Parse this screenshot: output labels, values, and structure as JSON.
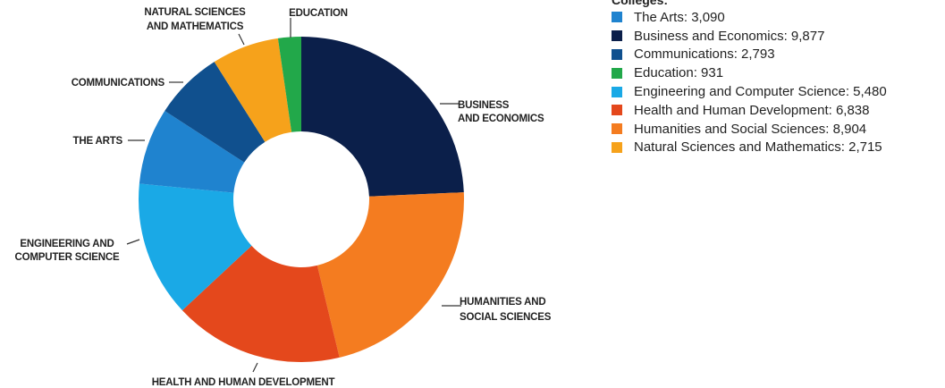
{
  "chart_data": {
    "type": "pie",
    "legend_title": "Colleges:",
    "legend_placement": "top-right",
    "slices": [
      {
        "key": "business",
        "legend": "Business and Economics: 9,877",
        "label": [
          "BUSINESS",
          "AND ECONOMICS"
        ],
        "value": 9877,
        "color": "#0b1f4a"
      },
      {
        "key": "humanities",
        "legend": "Humanities and Social Sciences: 8,904",
        "label": [
          "HUMANITIES AND",
          "SOCIAL SCIENCES"
        ],
        "value": 8904,
        "color": "#f47c20"
      },
      {
        "key": "health",
        "legend": "Health and Human Development: 6,838",
        "label": [
          "HEALTH AND HUMAN DEVELOPMENT"
        ],
        "value": 6838,
        "color": "#e4481c"
      },
      {
        "key": "engineering",
        "legend": "Engineering and Computer Science: 5,480",
        "label": [
          "ENGINEERING AND",
          "COMPUTER SCIENCE"
        ],
        "value": 5480,
        "color": "#1aa9e6"
      },
      {
        "key": "arts",
        "legend": "The Arts: 3,090",
        "label": [
          "THE ARTS"
        ],
        "value": 3090,
        "color": "#1f83cf"
      },
      {
        "key": "communications",
        "legend": "Communications: 2,793",
        "label": [
          "COMMUNICATIONS"
        ],
        "value": 2793,
        "color": "#10508e"
      },
      {
        "key": "natural",
        "legend": "Natural Sciences and Mathematics: 2,715",
        "label": [
          "NATURAL SCIENCES",
          "AND MATHEMATICS"
        ],
        "value": 2715,
        "color": "#f6a21b"
      },
      {
        "key": "education",
        "legend": "Education: 931",
        "label": [
          "EDUCATION"
        ],
        "value": 931,
        "color": "#22a84a"
      }
    ],
    "legend_order": [
      "arts",
      "business",
      "communications",
      "education",
      "engineering",
      "health",
      "humanities",
      "natural"
    ]
  }
}
